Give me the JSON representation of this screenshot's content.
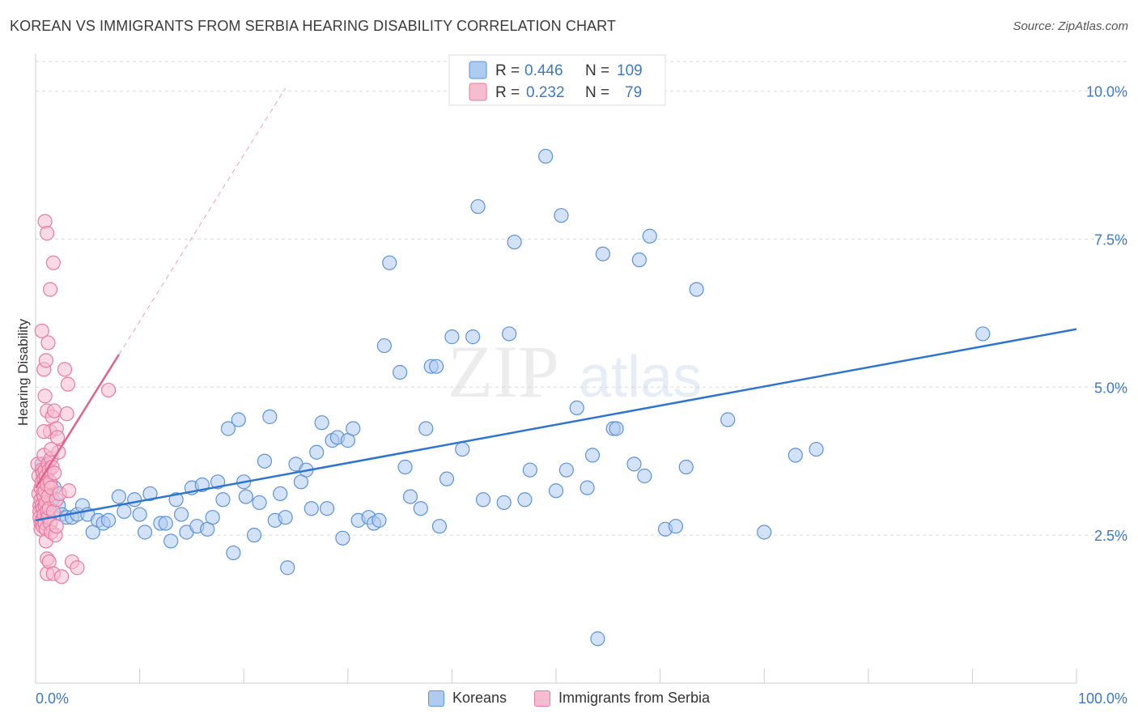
{
  "title": "KOREAN VS IMMIGRANTS FROM SERBIA HEARING DISABILITY CORRELATION CHART",
  "source": "Source: ZipAtlas.com",
  "watermark": {
    "zip": "ZIP",
    "atlas": "atlas"
  },
  "colors": {
    "blue_fill": "#aecbf0",
    "blue_stroke": "#5b93d8",
    "blue_line": "#2e75d0",
    "pink_fill": "#f6bcd0",
    "pink_stroke": "#e87aa0",
    "pink_line": "#e0628e",
    "value_text": "#3b78c8",
    "grid": "#d9d9d9"
  },
  "legend_top": [
    {
      "r_label": "R =",
      "r_value": "0.446",
      "n_label": "N =",
      "n_value": "109"
    },
    {
      "r_label": "R =",
      "r_value": "0.232",
      "n_label": "N =",
      "n_value": "79"
    }
  ],
  "chart_data": {
    "type": "scatter",
    "title": "KOREAN VS IMMIGRANTS FROM SERBIA HEARING DISABILITY CORRELATION CHART",
    "xlabel": "",
    "ylabel": "Hearing Disability",
    "xlim": [
      0,
      100
    ],
    "ylim": [
      0,
      10.5
    ],
    "x_tick_labels": {
      "left": "0.0%",
      "right": "100.0%"
    },
    "y_ticks": [
      {
        "value": 2.5,
        "label": "2.5%"
      },
      {
        "value": 5.0,
        "label": "5.0%"
      },
      {
        "value": 7.5,
        "label": "7.5%"
      },
      {
        "value": 10.0,
        "label": "10.0%"
      }
    ],
    "grid": "horizontal dashed",
    "legend_position": "bottom",
    "series": [
      {
        "name": "Koreans",
        "r": 0.446,
        "n": 109,
        "trend": {
          "x": [
            0.0,
            100.0
          ],
          "y": [
            2.75,
            5.98
          ]
        },
        "points": [
          [
            0.6,
            3.7
          ],
          [
            0.9,
            3.55
          ],
          [
            1.1,
            3.2
          ],
          [
            1.6,
            3.1
          ],
          [
            1.8,
            3.3
          ],
          [
            2.2,
            3.0
          ],
          [
            2.5,
            2.85
          ],
          [
            3.0,
            2.8
          ],
          [
            3.5,
            2.8
          ],
          [
            4.0,
            2.85
          ],
          [
            4.5,
            3.0
          ],
          [
            5.0,
            2.85
          ],
          [
            5.5,
            2.55
          ],
          [
            6.0,
            2.75
          ],
          [
            6.5,
            2.7
          ],
          [
            7.0,
            2.75
          ],
          [
            8.0,
            3.15
          ],
          [
            8.5,
            2.9
          ],
          [
            9.5,
            3.1
          ],
          [
            10.0,
            2.85
          ],
          [
            10.5,
            2.55
          ],
          [
            11.0,
            3.2
          ],
          [
            12.0,
            2.7
          ],
          [
            12.5,
            2.7
          ],
          [
            13.0,
            2.4
          ],
          [
            13.5,
            3.1
          ],
          [
            14.0,
            2.85
          ],
          [
            14.5,
            2.55
          ],
          [
            15.0,
            3.3
          ],
          [
            15.5,
            2.65
          ],
          [
            16.0,
            3.35
          ],
          [
            16.5,
            2.6
          ],
          [
            17.0,
            2.8
          ],
          [
            17.5,
            3.4
          ],
          [
            18.0,
            3.1
          ],
          [
            18.5,
            4.3
          ],
          [
            19.0,
            2.2
          ],
          [
            19.5,
            4.45
          ],
          [
            20.0,
            3.4
          ],
          [
            20.2,
            3.15
          ],
          [
            21.0,
            2.5
          ],
          [
            21.5,
            3.05
          ],
          [
            22.0,
            3.75
          ],
          [
            22.5,
            4.5
          ],
          [
            23.0,
            2.75
          ],
          [
            23.5,
            3.2
          ],
          [
            24.0,
            2.8
          ],
          [
            24.2,
            1.95
          ],
          [
            25.0,
            3.7
          ],
          [
            25.5,
            3.4
          ],
          [
            26.0,
            3.6
          ],
          [
            26.5,
            2.95
          ],
          [
            27.0,
            3.9
          ],
          [
            27.5,
            4.4
          ],
          [
            28.0,
            2.95
          ],
          [
            28.5,
            4.1
          ],
          [
            29.0,
            4.15
          ],
          [
            29.5,
            2.45
          ],
          [
            30.0,
            4.1
          ],
          [
            30.5,
            4.3
          ],
          [
            31.0,
            2.75
          ],
          [
            32.0,
            2.8
          ],
          [
            32.5,
            2.7
          ],
          [
            33.0,
            2.75
          ],
          [
            33.5,
            5.7
          ],
          [
            34.0,
            7.1
          ],
          [
            35.0,
            5.25
          ],
          [
            35.5,
            3.65
          ],
          [
            36.0,
            3.15
          ],
          [
            37.0,
            2.95
          ],
          [
            37.5,
            4.3
          ],
          [
            38.0,
            5.35
          ],
          [
            38.5,
            5.35
          ],
          [
            38.8,
            2.65
          ],
          [
            39.5,
            3.45
          ],
          [
            40.0,
            5.85
          ],
          [
            41.0,
            3.95
          ],
          [
            42.0,
            5.85
          ],
          [
            42.5,
            8.05
          ],
          [
            43.0,
            3.1
          ],
          [
            45.0,
            3.05
          ],
          [
            45.5,
            5.9
          ],
          [
            46.0,
            7.45
          ],
          [
            47.0,
            3.1
          ],
          [
            47.5,
            3.6
          ],
          [
            49.0,
            8.9
          ],
          [
            50.0,
            3.25
          ],
          [
            50.5,
            7.9
          ],
          [
            51.0,
            3.6
          ],
          [
            52.0,
            4.65
          ],
          [
            53.0,
            3.3
          ],
          [
            53.5,
            3.85
          ],
          [
            54.0,
            0.75
          ],
          [
            54.5,
            7.25
          ],
          [
            55.5,
            4.3
          ],
          [
            55.8,
            4.3
          ],
          [
            57.5,
            3.7
          ],
          [
            58.0,
            7.15
          ],
          [
            58.5,
            3.5
          ],
          [
            59.0,
            7.55
          ],
          [
            60.5,
            2.6
          ],
          [
            61.5,
            2.65
          ],
          [
            62.5,
            3.65
          ],
          [
            63.5,
            6.65
          ],
          [
            66.5,
            4.45
          ],
          [
            70.0,
            2.55
          ],
          [
            73.0,
            3.85
          ],
          [
            75.0,
            3.95
          ],
          [
            91.0,
            5.9
          ]
        ]
      },
      {
        "name": "Immigrants from Serbia",
        "r": 0.232,
        "n": 79,
        "trend_solid": {
          "x": [
            0.0,
            8.0
          ],
          "y": [
            3.3,
            5.55
          ]
        },
        "trend_dashed": {
          "x": [
            8.0,
            24.0
          ],
          "y": [
            5.55,
            10.05
          ]
        },
        "points": [
          [
            0.2,
            3.7
          ],
          [
            0.3,
            3.5
          ],
          [
            0.3,
            3.2
          ],
          [
            0.4,
            3.0
          ],
          [
            0.4,
            2.9
          ],
          [
            0.4,
            2.8
          ],
          [
            0.5,
            2.7
          ],
          [
            0.5,
            2.6
          ],
          [
            0.5,
            3.1
          ],
          [
            0.5,
            3.3
          ],
          [
            0.6,
            3.6
          ],
          [
            0.6,
            3.4
          ],
          [
            0.6,
            3.0
          ],
          [
            0.6,
            2.75
          ],
          [
            0.7,
            3.55
          ],
          [
            0.7,
            3.2
          ],
          [
            0.7,
            2.95
          ],
          [
            0.7,
            2.65
          ],
          [
            0.8,
            3.85
          ],
          [
            0.8,
            3.45
          ],
          [
            0.8,
            3.15
          ],
          [
            0.8,
            2.85
          ],
          [
            0.9,
            3.6
          ],
          [
            0.9,
            3.25
          ],
          [
            0.9,
            3.0
          ],
          [
            0.9,
            2.7
          ],
          [
            1.0,
            3.5
          ],
          [
            1.0,
            3.05
          ],
          [
            1.0,
            2.6
          ],
          [
            1.0,
            2.4
          ],
          [
            1.1,
            3.35
          ],
          [
            1.1,
            2.9
          ],
          [
            1.1,
            2.1
          ],
          [
            1.1,
            1.85
          ],
          [
            1.2,
            3.7
          ],
          [
            1.2,
            3.15
          ],
          [
            1.2,
            2.8
          ],
          [
            1.3,
            3.6
          ],
          [
            1.3,
            2.95
          ],
          [
            1.3,
            2.05
          ],
          [
            1.4,
            3.4
          ],
          [
            1.4,
            2.7
          ],
          [
            1.5,
            3.8
          ],
          [
            1.5,
            3.3
          ],
          [
            1.5,
            2.55
          ],
          [
            1.6,
            3.65
          ],
          [
            1.7,
            2.9
          ],
          [
            1.7,
            1.85
          ],
          [
            1.8,
            3.55
          ],
          [
            1.9,
            2.5
          ],
          [
            2.0,
            3.1
          ],
          [
            2.0,
            2.65
          ],
          [
            2.2,
            3.9
          ],
          [
            2.3,
            3.2
          ],
          [
            0.6,
            5.95
          ],
          [
            0.8,
            5.3
          ],
          [
            0.9,
            4.85
          ],
          [
            1.0,
            5.45
          ],
          [
            1.1,
            4.6
          ],
          [
            1.2,
            5.75
          ],
          [
            1.4,
            4.25
          ],
          [
            1.5,
            3.95
          ],
          [
            1.6,
            4.5
          ],
          [
            1.8,
            4.6
          ],
          [
            2.0,
            4.3
          ],
          [
            2.1,
            4.15
          ],
          [
            0.8,
            4.25
          ],
          [
            0.9,
            7.8
          ],
          [
            1.1,
            7.6
          ],
          [
            1.4,
            6.65
          ],
          [
            1.7,
            7.1
          ],
          [
            3.1,
            5.05
          ],
          [
            3.5,
            2.05
          ],
          [
            4.0,
            1.95
          ],
          [
            3.0,
            4.55
          ],
          [
            2.8,
            5.3
          ],
          [
            3.2,
            3.25
          ],
          [
            7.0,
            4.95
          ],
          [
            2.5,
            1.8
          ]
        ]
      }
    ]
  },
  "legend_bottom": [
    {
      "label": "Koreans"
    },
    {
      "label": "Immigrants from Serbia"
    }
  ]
}
